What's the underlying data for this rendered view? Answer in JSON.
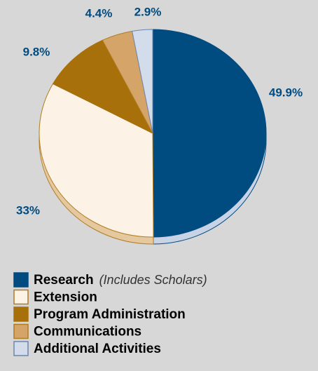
{
  "chart_data": {
    "type": "pie",
    "categories": [
      "Research",
      "Extension",
      "Program Administration",
      "Communications",
      "Additional Activities"
    ],
    "values": [
      49.9,
      33,
      9.8,
      4.4,
      2.9
    ],
    "value_labels": [
      "49.9%",
      "33%",
      "9.8%",
      "4.4%",
      "2.9%"
    ],
    "legend_note": "(Includes Scholars)",
    "colors": [
      "#004b80",
      "#fcf3e6",
      "#a8700a",
      "#d4a468",
      "#d3dcea"
    ],
    "edge_colors": [
      "#004b80",
      "#b07c22",
      "#a8700a",
      "#b07c22",
      "#6c86ad"
    ],
    "shadow_colors": [
      "#c8d3e6",
      "#e6c89e",
      "#a8700a",
      "#d4a468",
      "#d3dcea"
    ]
  }
}
